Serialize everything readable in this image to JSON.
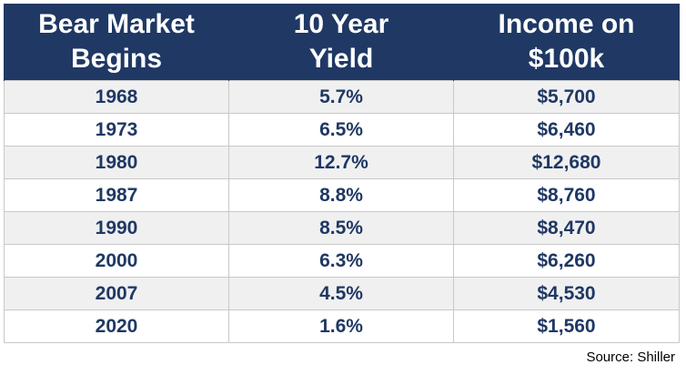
{
  "chart_data": {
    "type": "table",
    "columns": [
      "Bear Market Begins",
      "10 Year Yield",
      "Income on $100k"
    ],
    "header_lines": [
      [
        "Bear Market",
        "Begins"
      ],
      [
        "10 Year",
        "Yield"
      ],
      [
        "Income on",
        "$100k"
      ]
    ],
    "rows": [
      [
        "1968",
        "5.7%",
        "$5,700"
      ],
      [
        "1973",
        "6.5%",
        "$6,460"
      ],
      [
        "1980",
        "12.7%",
        "$12,680"
      ],
      [
        "1987",
        "8.8%",
        "$8,760"
      ],
      [
        "1990",
        "8.5%",
        "$8,470"
      ],
      [
        "2000",
        "6.3%",
        "$6,260"
      ],
      [
        "2007",
        "4.5%",
        "$4,530"
      ],
      [
        "2020",
        "1.6%",
        "$1,560"
      ]
    ],
    "source": "Source: Shiller"
  },
  "colors": {
    "header_bg": "#1f3864",
    "header_text": "#ffffff",
    "cell_text": "#1f3864",
    "row_alt": "#f0f0f0"
  }
}
